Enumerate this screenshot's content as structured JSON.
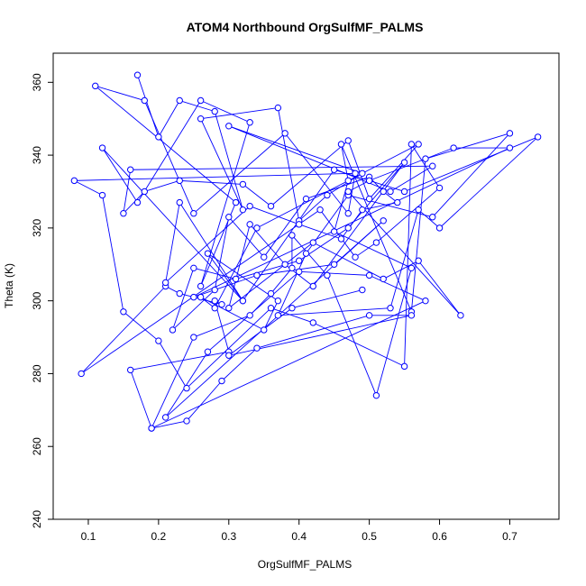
{
  "chart_data": {
    "type": "line",
    "title": "ATOM4 Northbound OrgSulfMF_PALMS",
    "xlabel": "OrgSulfMF_PALMS",
    "ylabel": "Theta (K)",
    "xlim": [
      0.05,
      0.77
    ],
    "ylim": [
      240,
      368
    ],
    "x_ticks": [
      0.1,
      0.2,
      0.3,
      0.4,
      0.5,
      0.6,
      0.7
    ],
    "y_ticks": [
      240,
      260,
      280,
      300,
      320,
      340,
      360
    ],
    "grid": false,
    "legend": "none",
    "series": [
      {
        "color": "#0000ff",
        "marker": "open-circle",
        "x": [
          0.17,
          0.2,
          0.23,
          0.28,
          0.32,
          0.26,
          0.37,
          0.4,
          0.44,
          0.49,
          0.3,
          0.53,
          0.59,
          0.16,
          0.15,
          0.18,
          0.23,
          0.32,
          0.36,
          0.47,
          0.5,
          0.57,
          0.34,
          0.28,
          0.26,
          0.35,
          0.37,
          0.27,
          0.32,
          0.12,
          0.17,
          0.26,
          0.33,
          0.26,
          0.31,
          0.11,
          0.18,
          0.25,
          0.38,
          0.47,
          0.48,
          0.08,
          0.12,
          0.15,
          0.2,
          0.24,
          0.36,
          0.42,
          0.55,
          0.56,
          0.6,
          0.51,
          0.48,
          0.43,
          0.09,
          0.21,
          0.23,
          0.29,
          0.28,
          0.3,
          0.16,
          0.19,
          0.25,
          0.33,
          0.36,
          0.39,
          0.39,
          0.44,
          0.51,
          0.56,
          0.45,
          0.47,
          0.46,
          0.56,
          0.58,
          0.7,
          0.59,
          0.47,
          0.41,
          0.37,
          0.53,
          0.57,
          0.6,
          0.74,
          0.55,
          0.45,
          0.32,
          0.23,
          0.21,
          0.33,
          0.4,
          0.46,
          0.49,
          0.54,
          0.52,
          0.5,
          0.41,
          0.35,
          0.3,
          0.28,
          0.22,
          0.25,
          0.31,
          0.4,
          0.47,
          0.55,
          0.42,
          0.38,
          0.33,
          0.3,
          0.42,
          0.52,
          0.57,
          0.63,
          0.47,
          0.5,
          0.62,
          0.7,
          0.25,
          0.34,
          0.45,
          0.52,
          0.21,
          0.27,
          0.4,
          0.5,
          0.58,
          0.19,
          0.24,
          0.29,
          0.34,
          0.5,
          0.56,
          0.3,
          0.39,
          0.49
        ],
        "y": [
          362,
          345,
          355,
          352,
          325,
          350,
          353,
          322,
          329,
          335,
          348,
          330,
          337,
          336,
          324,
          330,
          333,
          332,
          326,
          344,
          328,
          343,
          320,
          298,
          301,
          292,
          300,
          313,
          300,
          342,
          327,
          355,
          349,
          304,
          327,
          359,
          355,
          324,
          346,
          324,
          335,
          333,
          329,
          297,
          289,
          276,
          298,
          294,
          282,
          343,
          331,
          316,
          312,
          325,
          280,
          304,
          302,
          299,
          300,
          286,
          281,
          265,
          290,
          296,
          302,
          309,
          318,
          307,
          274,
          309,
          319,
          333,
          343,
          297,
          339,
          346,
          323,
          329,
          313,
          296,
          298,
          325,
          320,
          345,
          330,
          336,
          300,
          327,
          305,
          326,
          321,
          317,
          325,
          327,
          330,
          334,
          328,
          312,
          323,
          303,
          292,
          309,
          306,
          311,
          320,
          338,
          304,
          310,
          321,
          298,
          316,
          306,
          311,
          296,
          330,
          333,
          342,
          342,
          301,
          307,
          310,
          322,
          268,
          286,
          308,
          307,
          300,
          265,
          267,
          278,
          287,
          296,
          296,
          285,
          298,
          303
        ]
      }
    ]
  }
}
